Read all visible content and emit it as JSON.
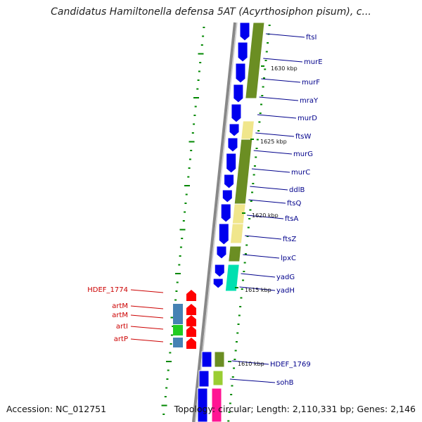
{
  "title": "Candidatus Hamiltonella defensa 5AT (Acyrthosiphon pisum), c...",
  "footer": {
    "accession": "Accession: NC_012751",
    "summary": "Topology: circular; Length: 2,110,331 bp; Genes: 2,146"
  },
  "colors": {
    "forward_gene": "#0000ee",
    "reverse_gene": "#ff0000",
    "steel_blue": "#4682b4",
    "green": "#22cc22",
    "olive": "#6b8e23",
    "pale_yellow": "#f0e68c",
    "teal": "#00e0b0",
    "magenta": "#ff1493",
    "backbone": "#888888",
    "label_blue": "#00008b",
    "label_red": "#cc0000",
    "tick": "#008800"
  },
  "genes_right": [
    {
      "name": "ftsI",
      "strand": "+"
    },
    {
      "name": "murE",
      "strand": "+"
    },
    {
      "name": "murF",
      "strand": "+"
    },
    {
      "name": "mraY",
      "strand": "+"
    },
    {
      "name": "murD",
      "strand": "+"
    },
    {
      "name": "ftsW",
      "strand": "+"
    },
    {
      "name": "murG",
      "strand": "+"
    },
    {
      "name": "murC",
      "strand": "+"
    },
    {
      "name": "ddlB",
      "strand": "+"
    },
    {
      "name": "ftsQ",
      "strand": "+"
    },
    {
      "name": "ftsA",
      "strand": "+"
    },
    {
      "name": "ftsZ",
      "strand": "+"
    },
    {
      "name": "lpxC",
      "strand": "+"
    },
    {
      "name": "yadG",
      "strand": "+"
    },
    {
      "name": "yadH",
      "strand": "+"
    },
    {
      "name": "HDEF_1769",
      "strand": "+"
    },
    {
      "name": "sohB",
      "strand": "+"
    }
  ],
  "genes_left": [
    {
      "name": "HDEF_1774",
      "strand": "-"
    },
    {
      "name": "artM",
      "strand": "-"
    },
    {
      "name": "artM",
      "strand": "-"
    },
    {
      "name": "artI",
      "strand": "-"
    },
    {
      "name": "artP",
      "strand": "-"
    }
  ],
  "kbp_markers": [
    "1630 kbp",
    "1625 kbp",
    "1620 kbp",
    "1615 kbp",
    "1610 kbp"
  ]
}
